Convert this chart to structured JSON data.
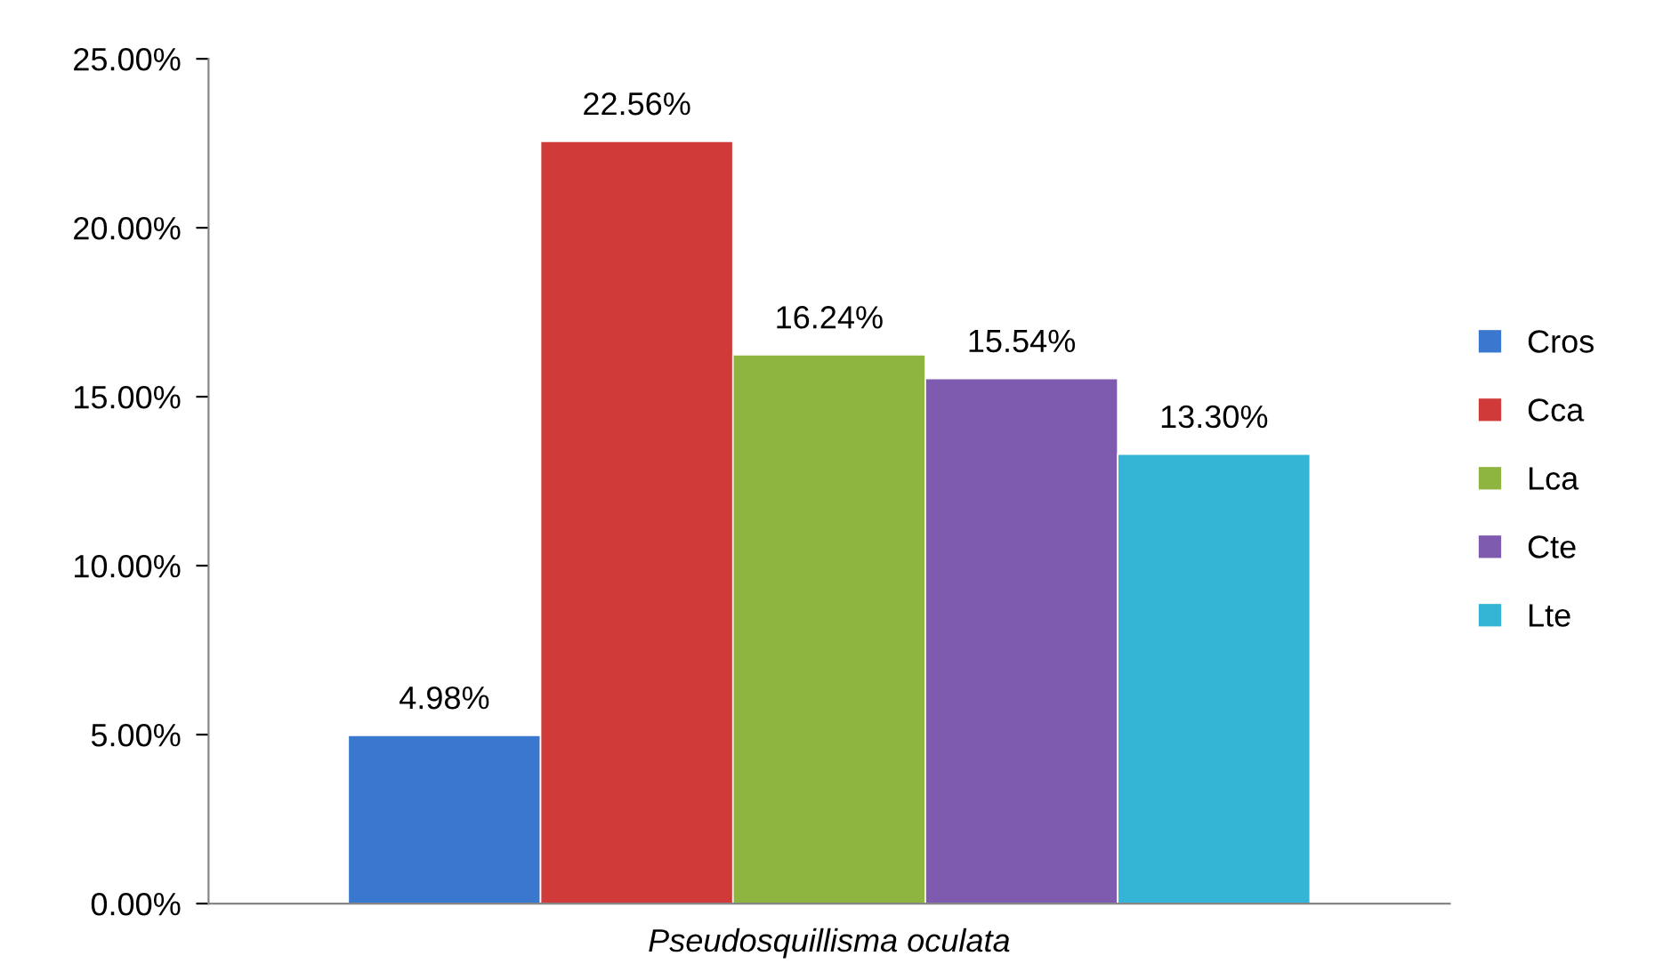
{
  "chart_data": {
    "type": "bar",
    "categories": [
      "Pseudosquillisma oculata"
    ],
    "series": [
      {
        "name": "Cros",
        "color": "#3a78d0",
        "values": [
          4.98
        ],
        "value_labels": [
          "4.98%"
        ]
      },
      {
        "name": "Cca",
        "color": "#d03b3a",
        "values": [
          22.56
        ],
        "value_labels": [
          "22.56%"
        ]
      },
      {
        "name": "Lca",
        "color": "#8db53f",
        "values": [
          16.24
        ],
        "value_labels": [
          "16.24%"
        ]
      },
      {
        "name": "Cte",
        "color": "#7f5bb0",
        "values": [
          15.54
        ],
        "value_labels": [
          "15.54%"
        ]
      },
      {
        "name": "Lte",
        "color": "#34b5d5",
        "values": [
          13.3
        ],
        "value_labels": [
          "13.30%"
        ]
      }
    ],
    "ylim": [
      0,
      25
    ],
    "yticks": [
      {
        "value": 0,
        "label": "0.00%"
      },
      {
        "value": 5,
        "label": "5.00%"
      },
      {
        "value": 10,
        "label": "10.00%"
      },
      {
        "value": 15,
        "label": "15.00%"
      },
      {
        "value": 20,
        "label": "20.00%"
      },
      {
        "value": 25,
        "label": "25.00%"
      }
    ],
    "grid": false,
    "legend": "right"
  }
}
